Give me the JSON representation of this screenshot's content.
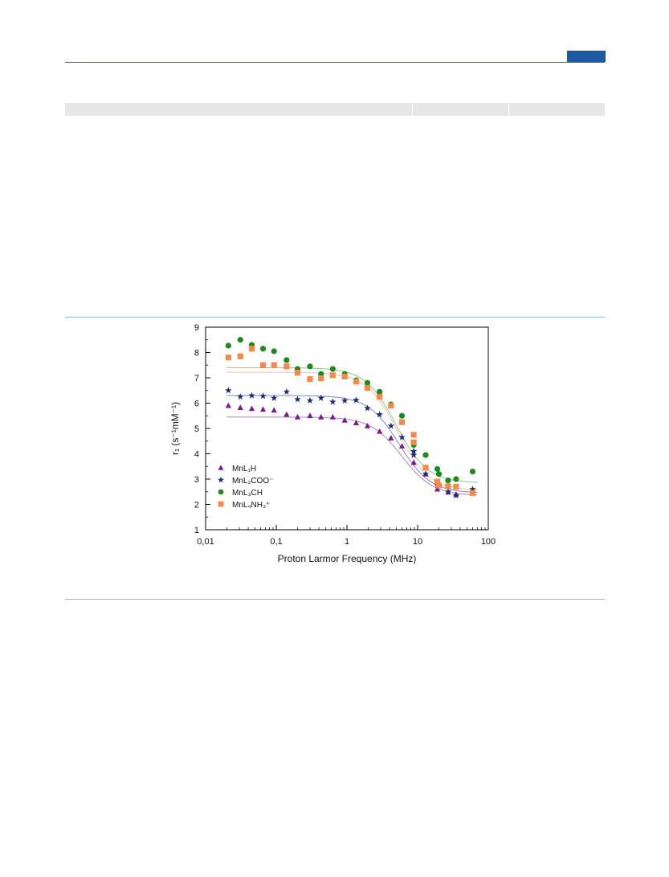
{
  "page": {
    "accent_color": "#1f5aa0",
    "rule_color": "#2d5f96",
    "table_band_color": "#e7e7e7"
  },
  "chart_data": {
    "type": "scatter",
    "x_scale": "log",
    "xlabel": "Proton Larmor Frequency (MHz)",
    "ylabel": "r₁ (s⁻¹mM⁻¹)",
    "xlim": [
      0.01,
      100
    ],
    "ylim": [
      1,
      9
    ],
    "x_ticks": [
      "0,01",
      "0,1",
      "1",
      "10",
      "100"
    ],
    "y_ticks": [
      "1",
      "2",
      "3",
      "4",
      "5",
      "6",
      "7",
      "8",
      "9"
    ],
    "legend_position": "lower-left",
    "grid": false,
    "series": [
      {
        "name": "MnL₁H",
        "marker": "triangle",
        "color": "#7b1a8c",
        "fit_color": "#b98fc4",
        "fit": {
          "hi": 5.45,
          "lo": 2.35,
          "center": 6.0,
          "width": 0.22
        },
        "points": [
          [
            0.021,
            5.9
          ],
          [
            0.031,
            5.82
          ],
          [
            0.045,
            5.78
          ],
          [
            0.065,
            5.75
          ],
          [
            0.093,
            5.72
          ],
          [
            0.14,
            5.55
          ],
          [
            0.2,
            5.45
          ],
          [
            0.3,
            5.5
          ],
          [
            0.43,
            5.45
          ],
          [
            0.63,
            5.45
          ],
          [
            0.93,
            5.32
          ],
          [
            1.35,
            5.22
          ],
          [
            1.95,
            5.1
          ],
          [
            2.9,
            4.88
          ],
          [
            4.2,
            4.62
          ],
          [
            6.0,
            4.3
          ],
          [
            8.8,
            3.65
          ],
          [
            13,
            3.2
          ],
          [
            19,
            2.6
          ],
          [
            27,
            2.48
          ],
          [
            35,
            2.4
          ],
          [
            60,
            2.5
          ]
        ]
      },
      {
        "name": "MnL₂COO⁻",
        "marker": "star",
        "color": "#1c2a7a",
        "fit_color": "#8a93c8",
        "fit": {
          "hi": 6.3,
          "lo": 2.45,
          "center": 5.5,
          "width": 0.22
        },
        "points": [
          [
            0.021,
            6.5
          ],
          [
            0.031,
            6.25
          ],
          [
            0.045,
            6.3
          ],
          [
            0.065,
            6.28
          ],
          [
            0.093,
            6.2
          ],
          [
            0.14,
            6.45
          ],
          [
            0.2,
            6.15
          ],
          [
            0.3,
            6.1
          ],
          [
            0.43,
            6.2
          ],
          [
            0.63,
            6.05
          ],
          [
            0.93,
            6.1
          ],
          [
            1.35,
            6.12
          ],
          [
            1.95,
            5.8
          ],
          [
            2.9,
            5.55
          ],
          [
            4.2,
            5.1
          ],
          [
            6.0,
            4.65
          ],
          [
            8.8,
            4.1
          ],
          [
            8.8,
            3.95
          ],
          [
            13,
            3.2
          ],
          [
            19,
            2.75
          ],
          [
            27,
            2.5
          ],
          [
            35,
            2.35
          ],
          [
            60,
            2.6
          ]
        ]
      },
      {
        "name": "MnL₃CH",
        "marker": "circle",
        "color": "#1d8a1d",
        "fit_color": "#8fcf8f",
        "fit": {
          "hi": 7.4,
          "lo": 2.85,
          "center": 5.0,
          "width": 0.22
        },
        "points": [
          [
            0.021,
            8.27
          ],
          [
            0.031,
            8.5
          ],
          [
            0.045,
            8.3
          ],
          [
            0.065,
            8.15
          ],
          [
            0.093,
            8.05
          ],
          [
            0.14,
            7.7
          ],
          [
            0.2,
            7.35
          ],
          [
            0.3,
            7.45
          ],
          [
            0.43,
            7.15
          ],
          [
            0.63,
            7.35
          ],
          [
            0.93,
            7.15
          ],
          [
            1.35,
            6.9
          ],
          [
            1.95,
            6.8
          ],
          [
            2.9,
            6.45
          ],
          [
            4.2,
            5.95
          ],
          [
            6.0,
            5.5
          ],
          [
            8.8,
            4.35
          ],
          [
            13,
            3.95
          ],
          [
            19,
            3.4
          ],
          [
            20,
            3.2
          ],
          [
            27,
            2.95
          ],
          [
            35,
            3.0
          ],
          [
            60,
            3.3
          ]
        ]
      },
      {
        "name": "MnL₄NH₃⁺",
        "marker": "square",
        "color": "#f4894a",
        "fit_color": "#f8c5a6",
        "fit": {
          "hi": 7.22,
          "lo": 2.55,
          "center": 5.2,
          "width": 0.22
        },
        "points": [
          [
            0.021,
            7.8
          ],
          [
            0.031,
            7.85
          ],
          [
            0.045,
            8.15
          ],
          [
            0.065,
            7.5
          ],
          [
            0.093,
            7.5
          ],
          [
            0.14,
            7.45
          ],
          [
            0.2,
            7.2
          ],
          [
            0.3,
            6.95
          ],
          [
            0.43,
            6.98
          ],
          [
            0.63,
            7.1
          ],
          [
            0.93,
            7.05
          ],
          [
            1.35,
            6.85
          ],
          [
            1.95,
            6.6
          ],
          [
            2.9,
            6.25
          ],
          [
            4.2,
            5.9
          ],
          [
            6.0,
            5.25
          ],
          [
            8.8,
            4.75
          ],
          [
            8.8,
            4.45
          ],
          [
            13,
            3.45
          ],
          [
            19,
            2.9
          ],
          [
            20,
            2.75
          ],
          [
            27,
            2.72
          ],
          [
            35,
            2.7
          ],
          [
            60,
            2.45
          ]
        ]
      }
    ]
  }
}
